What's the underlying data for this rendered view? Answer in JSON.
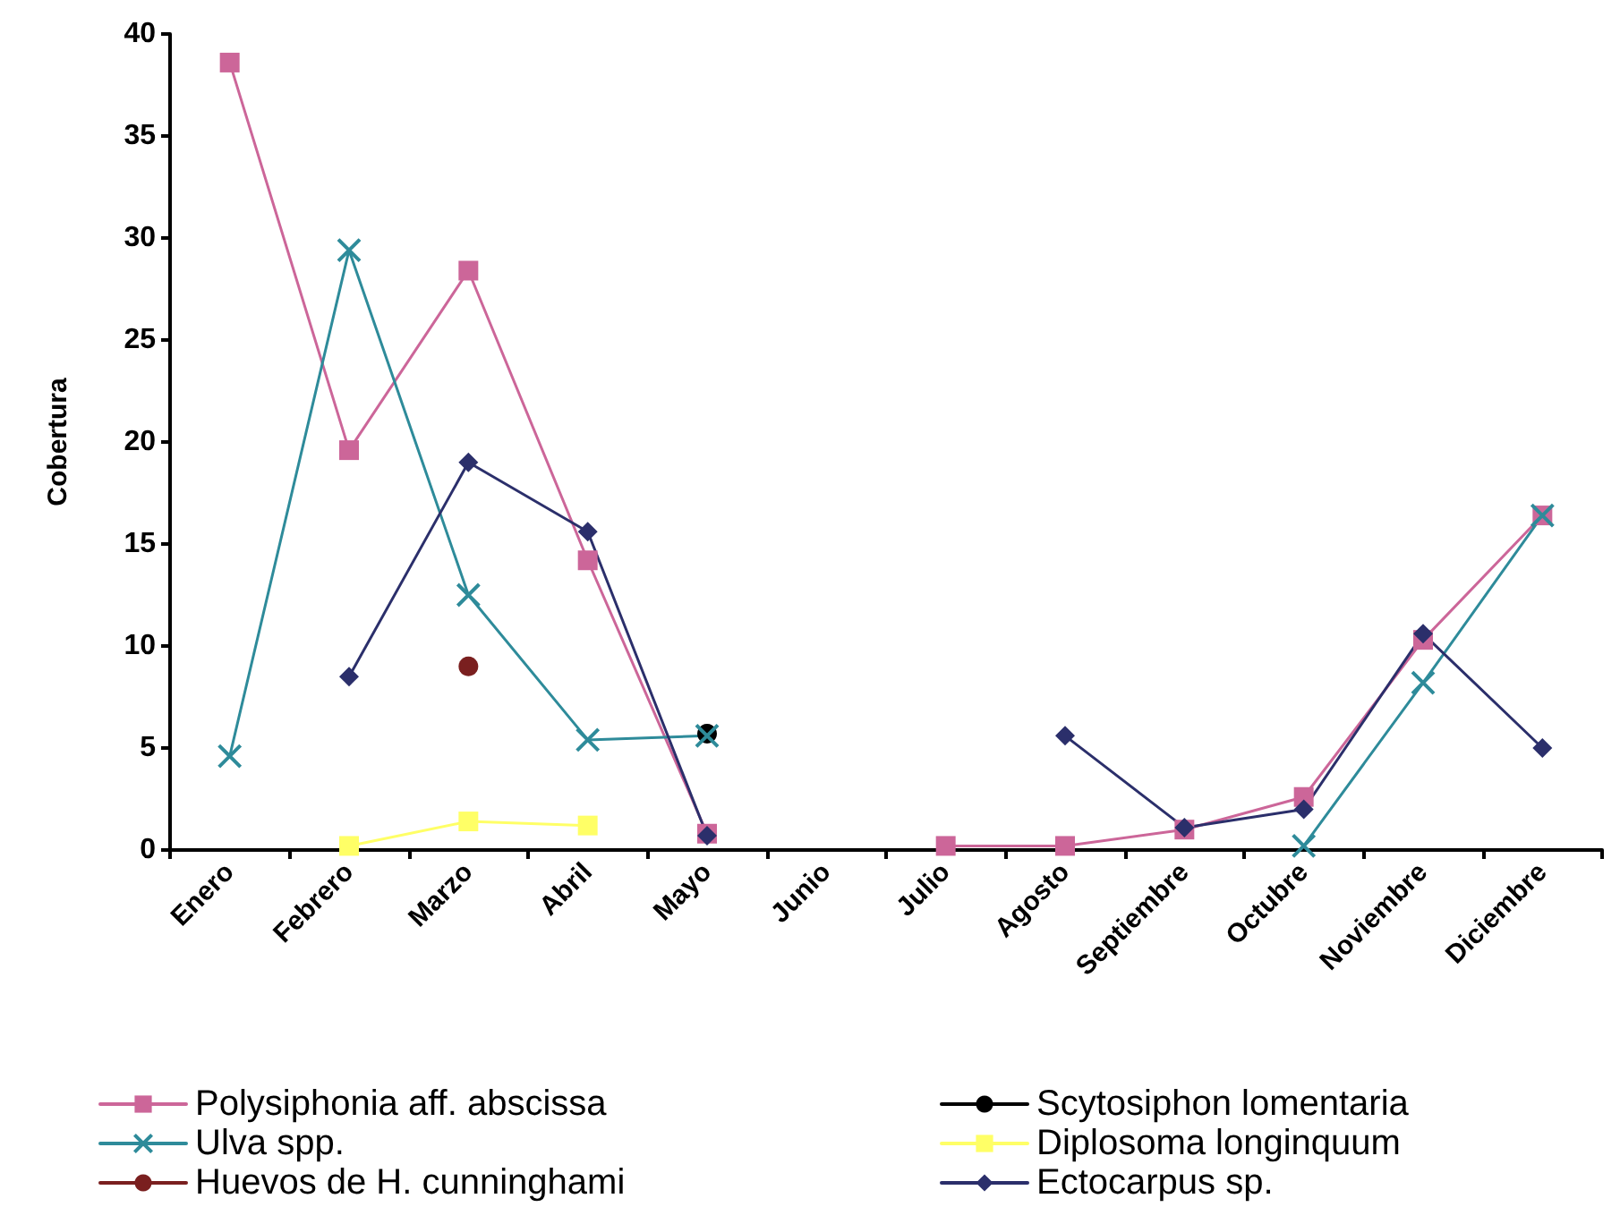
{
  "chart_data": {
    "type": "line",
    "ylabel": "Cobertura",
    "categories": [
      "Enero",
      "Febrero",
      "Marzo",
      "Abril",
      "Mayo",
      "Junio",
      "Julio",
      "Agosto",
      "Septiembre",
      "Octubre",
      "Noviembre",
      "Diciembre"
    ],
    "ylim": [
      0,
      40
    ],
    "yticks": [
      0,
      5,
      10,
      15,
      20,
      25,
      30,
      35,
      40
    ],
    "grid": false,
    "legend": "bottom",
    "series": [
      {
        "name": "Polysiphonia aff. abscissa",
        "color": "#cc6699",
        "marker": "square",
        "values": [
          38.6,
          19.6,
          28.4,
          14.2,
          0.8,
          null,
          0.2,
          0.2,
          1.0,
          2.6,
          10.3,
          16.4
        ]
      },
      {
        "name": "Scytosiphon lomentaria",
        "color": "#000000",
        "marker": "circle",
        "values": [
          null,
          null,
          null,
          null,
          5.7,
          null,
          null,
          null,
          null,
          null,
          null,
          null
        ]
      },
      {
        "name": "Ulva spp.",
        "color": "#2e8b9a",
        "marker": "cross",
        "values": [
          4.6,
          29.4,
          12.5,
          5.4,
          5.6,
          null,
          null,
          null,
          null,
          0.2,
          8.2,
          16.4
        ]
      },
      {
        "name": "Diplosoma longinquum",
        "color": "#ffff66",
        "marker": "square",
        "values": [
          null,
          0.2,
          1.4,
          1.2,
          null,
          null,
          null,
          null,
          null,
          null,
          null,
          null
        ]
      },
      {
        "name": "Huevos de H. cunninghami",
        "color": "#7a1f1f",
        "marker": "circle",
        "values": [
          null,
          null,
          9.0,
          null,
          null,
          null,
          null,
          null,
          null,
          null,
          null,
          null
        ]
      },
      {
        "name": "Ectocarpus sp.",
        "color": "#2b2f6b",
        "marker": "diamond",
        "values": [
          null,
          8.5,
          19.0,
          15.6,
          0.7,
          null,
          null,
          5.6,
          1.1,
          2.0,
          10.6,
          5.0
        ]
      }
    ]
  }
}
